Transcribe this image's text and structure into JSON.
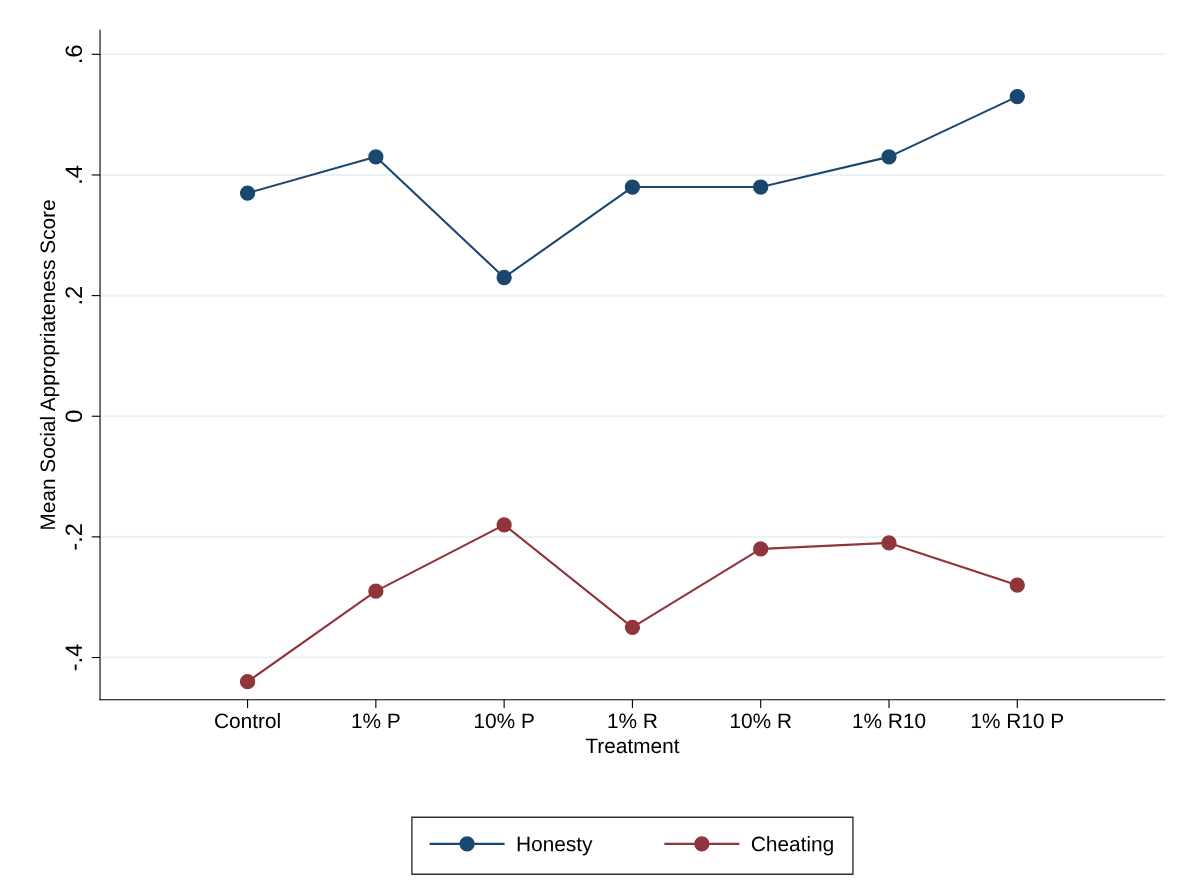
{
  "chart_data": {
    "type": "line",
    "xlabel": "Treatment",
    "ylabel": "Mean Social Appropriateness Score",
    "categories": [
      "Control",
      "1% P",
      "10% P",
      "1% R",
      "10% R",
      "1% R10",
      "1% R10 P"
    ],
    "series": [
      {
        "name": "Honesty",
        "color": "#1a476f",
        "values": [
          0.37,
          0.43,
          0.23,
          0.38,
          0.38,
          0.43,
          0.53
        ]
      },
      {
        "name": "Cheating",
        "color": "#90353b",
        "values": [
          -0.44,
          -0.29,
          -0.18,
          -0.35,
          -0.22,
          -0.21,
          -0.28
        ]
      }
    ],
    "ylim": [
      -0.47,
      0.64
    ],
    "yticks": [
      {
        "value": -0.4,
        "label": "-.4"
      },
      {
        "value": -0.2,
        "label": "-.2"
      },
      0,
      {
        "value": 0.2,
        "label": ".2"
      },
      {
        "value": 0.4,
        "label": ".4"
      },
      {
        "value": 0.6,
        "label": ".6"
      }
    ],
    "grid": "y",
    "legend": "bottom",
    "marker": "circle",
    "line_style": "solid"
  }
}
